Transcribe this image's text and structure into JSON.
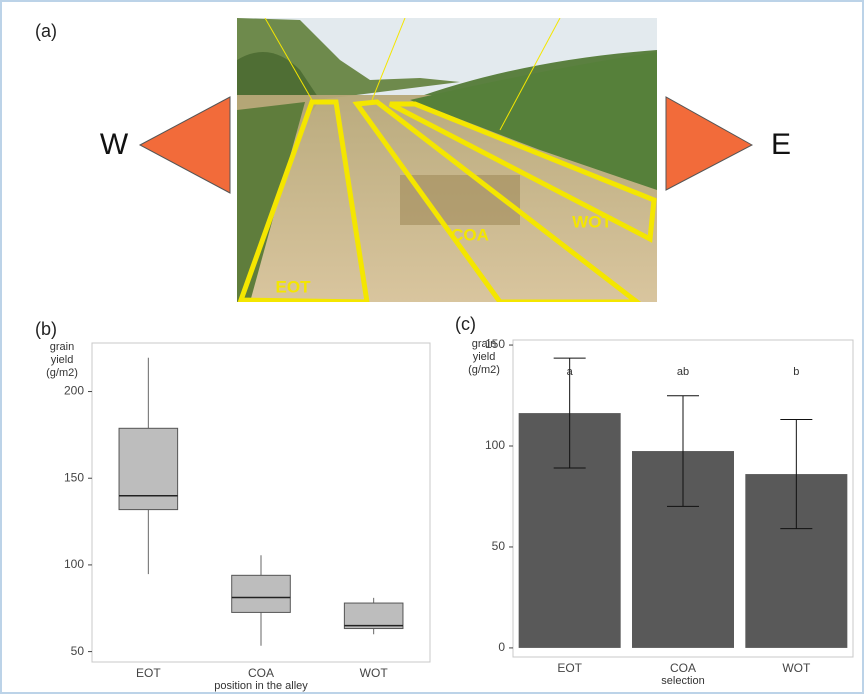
{
  "figure": {
    "panel_label": "(a)",
    "west": "W",
    "east": "E",
    "photo_labels": [
      "EOT",
      "COA",
      "WOT"
    ]
  },
  "chart_data": [
    {
      "type": "box",
      "panel_label": "(b)",
      "y_label": [
        "grain",
        "yield",
        "(g/m2)"
      ],
      "x_label": "position in the alley",
      "categories": [
        "EOT",
        "COA",
        "WOT"
      ],
      "boxes": [
        {
          "min": 94.7,
          "q1": 131.9,
          "median": 139.9,
          "q3": 178.8,
          "max": 219.5
        },
        {
          "min": 53.4,
          "q1": 72.6,
          "median": 81.2,
          "q3": 94,
          "max": 105.6
        },
        {
          "min": 60,
          "q1": 63.3,
          "median": 65,
          "q3": 78,
          "max": 81
        }
      ],
      "color": "#bdbdbd",
      "ylim": [
        44,
        228
      ],
      "yticks": [
        50,
        100,
        150,
        200
      ],
      "grid": false
    },
    {
      "type": "bar",
      "panel_label": "(c)",
      "y_label": [
        "grain",
        "yield",
        "(g/m2)"
      ],
      "x_label": "selection",
      "categories": [
        "EOT",
        "COA",
        "WOT"
      ],
      "values": [
        116.3,
        97.5,
        86.1
      ],
      "errors": [
        27.2,
        27.4,
        27.0
      ],
      "annotations": [
        "a",
        "ab",
        "b"
      ],
      "color": "#595959",
      "ylim": [
        -4.5,
        152.5
      ],
      "yticks": [
        0,
        50,
        100,
        150
      ],
      "grid": false
    }
  ]
}
